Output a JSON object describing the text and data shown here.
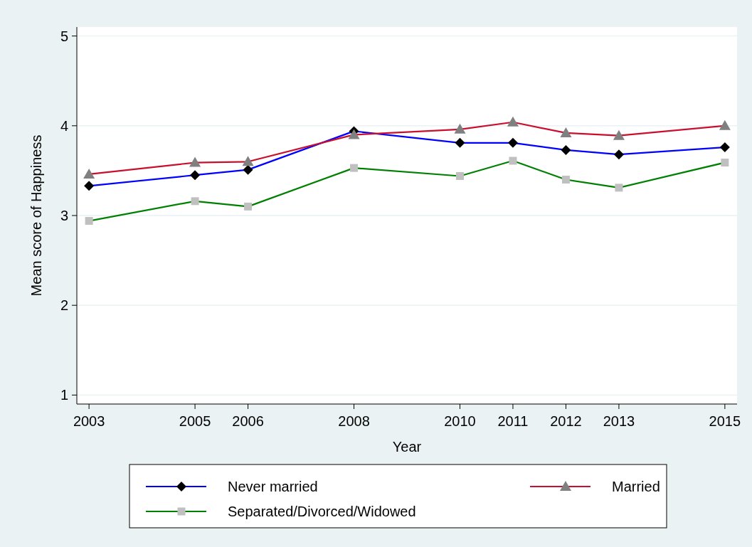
{
  "chart_data": {
    "type": "line",
    "xlabel": "Year",
    "ylabel": "Mean score of Happiness",
    "x": [
      2003,
      2005,
      2006,
      2008,
      2010,
      2011,
      2012,
      2013,
      2015
    ],
    "xlim": [
      2002.77,
      2015.23
    ],
    "xticks": [
      2003,
      2005,
      2006,
      2008,
      2010,
      2011,
      2012,
      2013,
      2015
    ],
    "ylim": [
      0.9,
      5.1
    ],
    "yticks": [
      1,
      2,
      3,
      4,
      5
    ],
    "grid": "y",
    "legend": "bottom",
    "series": [
      {
        "name": "Never married",
        "color": "#0000ff",
        "marker": "diamond",
        "values": [
          3.33,
          3.45,
          3.51,
          3.94,
          3.81,
          3.81,
          3.73,
          3.68,
          3.76
        ]
      },
      {
        "name": "Married",
        "color": "#c8102e",
        "marker": "triangle",
        "values": [
          3.46,
          3.59,
          3.6,
          3.9,
          3.96,
          4.04,
          3.92,
          3.89,
          4.0
        ]
      },
      {
        "name": "Separated/Divorced/Widowed",
        "color": "#008000",
        "marker": "square",
        "values": [
          2.94,
          3.16,
          3.1,
          3.53,
          3.44,
          3.61,
          3.4,
          3.31,
          3.59
        ]
      }
    ]
  }
}
